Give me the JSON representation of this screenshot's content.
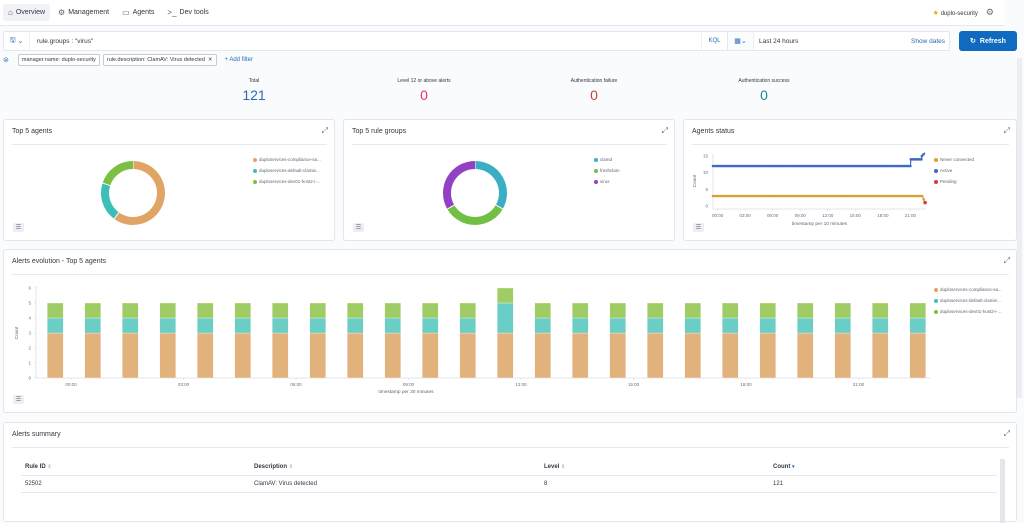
{
  "nav": {
    "tabs": [
      {
        "label": "Overview",
        "icon": "overview-icon",
        "active": true
      },
      {
        "label": "Management",
        "icon": "management-icon",
        "active": false
      },
      {
        "label": "Agents",
        "icon": "monitor-icon",
        "active": false
      },
      {
        "label": "Dev tools",
        "icon": "terminal-icon",
        "active": false
      }
    ],
    "api": "duplo-security"
  },
  "search": {
    "query": "rule.groups : \"virus\"",
    "language": "KQL",
    "time_range": "Last 24 hours",
    "show_dates": "Show dates",
    "refresh": "Refresh"
  },
  "filters": {
    "pills": [
      "manager.name: duplo-security",
      "rule.description: ClamAV: Virus detected"
    ],
    "add": "+ Add filter"
  },
  "metrics": [
    {
      "label": "Total",
      "value": "121",
      "color": "#2a6bb7"
    },
    {
      "label": "Level 12 or above alerts",
      "value": "0",
      "color": "#e0327a"
    },
    {
      "label": "Authentication failure",
      "value": "0",
      "color": "#d33c3c"
    },
    {
      "label": "Authentication success",
      "value": "0",
      "color": "#1d8c8c"
    }
  ],
  "panels": {
    "top_agents": {
      "title": "Top 5 agents"
    },
    "top_rule_groups": {
      "title": "Top 5 rule groups"
    },
    "agents_status": {
      "title": "Agents status"
    },
    "alerts_evolution": {
      "title": "Alerts evolution - Top 5 agents"
    },
    "alerts_summary": {
      "title": "Alerts summary"
    }
  },
  "chart_data": [
    {
      "type": "pie",
      "title": "Top 5 agents",
      "donut": true,
      "labels": [
        "duploservices-compliance-sa...",
        "duploservices-default-clamie...",
        "duploservices-dev01-host2-i-..."
      ],
      "values": [
        60,
        20,
        20
      ],
      "colors": [
        "#e0a565",
        "#3cbfb8",
        "#7dbf43"
      ],
      "legend": "right"
    },
    {
      "type": "pie",
      "title": "Top 5 rule groups",
      "donut": true,
      "labels": [
        "clamd",
        "freshclam",
        "virus"
      ],
      "values": [
        33.3,
        33.3,
        33.4
      ],
      "colors": [
        "#3aafc4",
        "#72c043",
        "#9341c4"
      ],
      "legend": "right"
    },
    {
      "type": "line",
      "title": "Agents status",
      "xlabel": "timestamp per 10 minutes",
      "ylabel": "Count",
      "ylim": [
        0,
        15
      ],
      "yticks": [
        "0",
        "5",
        "10",
        "15"
      ],
      "xticks": [
        "00:00",
        "03:00",
        "06:00",
        "09:00",
        "12:00",
        "15:00",
        "18:00",
        "21:00"
      ],
      "x_range_hours": [
        -0.5,
        22.7
      ],
      "series": [
        {
          "name": "Never connected",
          "color": "#d6a135",
          "points": [
            [
              -0.5,
              3
            ],
            [
              22.3,
              3
            ],
            [
              22.45,
              2
            ],
            [
              22.6,
              1
            ]
          ]
        },
        {
          "name": "Active",
          "color": "#3f68c9",
          "points": [
            [
              -0.5,
              12
            ],
            [
              21.0,
              12
            ],
            [
              21.05,
              14
            ],
            [
              22.2,
              14
            ],
            [
              22.25,
              15
            ],
            [
              22.6,
              16
            ]
          ]
        },
        {
          "name": "Pending",
          "color": "#d33c3c",
          "points": [
            [
              22.6,
              1
            ]
          ]
        }
      ],
      "legend": "right"
    },
    {
      "type": "bar",
      "stacked": true,
      "title": "Alerts evolution - Top 5 agents",
      "xlabel": "timestamp per 30 minutes",
      "ylabel": "Count",
      "ylim": [
        0,
        6
      ],
      "yticks": [
        "0",
        "1",
        "2",
        "3",
        "4",
        "5",
        "6"
      ],
      "xticks": [
        "00:00",
        "03:00",
        "06:00",
        "09:00",
        "12:00",
        "15:00",
        "18:00",
        "21:00"
      ],
      "categories": [
        "23:30",
        "00:30",
        "01:30",
        "02:30",
        "03:30",
        "04:30",
        "05:30",
        "06:30",
        "07:30",
        "08:30",
        "09:30",
        "10:30",
        "11:30",
        "12:30",
        "13:30",
        "14:30",
        "15:30",
        "16:30",
        "17:30",
        "18:30",
        "19:30",
        "20:30",
        "21:30",
        "22:30"
      ],
      "series": [
        {
          "name": "duploservices-compliance-sa...",
          "color": "#e2b27c",
          "values": [
            3,
            3,
            3,
            3,
            3,
            3,
            3,
            3,
            3,
            3,
            3,
            3,
            3,
            3,
            3,
            3,
            3,
            3,
            3,
            3,
            3,
            3,
            3,
            3
          ]
        },
        {
          "name": "duploservices-default-clamie...",
          "color": "#6acdc6",
          "values": [
            1,
            1,
            1,
            1,
            1,
            1,
            1,
            1,
            1,
            1,
            1,
            1,
            2,
            1,
            1,
            1,
            1,
            1,
            1,
            1,
            1,
            1,
            1,
            1
          ]
        },
        {
          "name": "duploservices-dev01-host2-i-...",
          "color": "#a0cc65",
          "values": [
            1,
            1,
            1,
            1,
            1,
            1,
            1,
            1,
            1,
            1,
            1,
            1,
            1,
            1,
            1,
            1,
            1,
            1,
            1,
            1,
            1,
            1,
            1,
            1
          ]
        }
      ],
      "legend": "right"
    }
  ],
  "summary": {
    "columns": [
      "Rule ID",
      "Description",
      "Level",
      "Count"
    ],
    "rows": [
      [
        "52502",
        "ClamAV: Virus detected",
        "8",
        "121"
      ]
    ]
  }
}
